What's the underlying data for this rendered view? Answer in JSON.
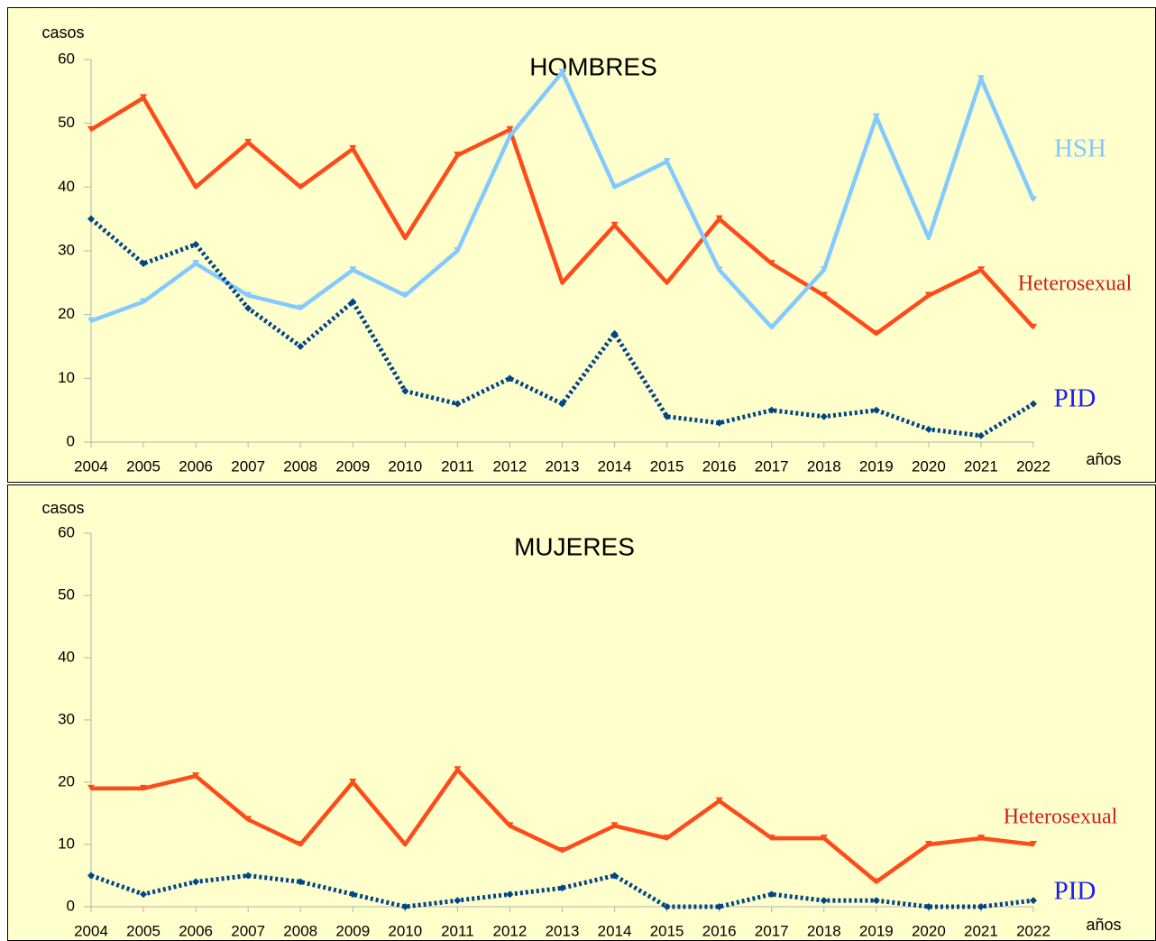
{
  "chart_data": [
    {
      "type": "line",
      "title": "HOMBRES",
      "ylabel": "casos",
      "xlabel": "años",
      "categories": [
        "2004",
        "2005",
        "2006",
        "2007",
        "2008",
        "2009",
        "2010",
        "2011",
        "2012",
        "2013",
        "2014",
        "2015",
        "2016",
        "2017",
        "2018",
        "2019",
        "2020",
        "2021",
        "2022"
      ],
      "ylim": [
        0,
        60
      ],
      "yticks": [
        0,
        10,
        20,
        30,
        40,
        50,
        60
      ],
      "series": [
        {
          "name": "Heterosexual",
          "color": "#ff4a1a",
          "label_color": "#c9211e",
          "dashed": false,
          "values": [
            49,
            54,
            40,
            47,
            40,
            46,
            32,
            45,
            49,
            25,
            34,
            25,
            35,
            28,
            23,
            17,
            23,
            27,
            18
          ]
        },
        {
          "name": "HSH",
          "color": "#83caff",
          "label_color": "#83caff",
          "dashed": false,
          "values": [
            19,
            22,
            28,
            23,
            21,
            27,
            23,
            30,
            48,
            58,
            40,
            44,
            27,
            18,
            27,
            51,
            32,
            57,
            38
          ]
        },
        {
          "name": "PID",
          "color": "#004586",
          "label_color": "#1a1aff",
          "dashed": true,
          "values": [
            35,
            28,
            31,
            21,
            15,
            22,
            8,
            6,
            10,
            6,
            17,
            4,
            3,
            5,
            4,
            5,
            2,
            1,
            6
          ]
        }
      ]
    },
    {
      "type": "line",
      "title": "MUJERES",
      "ylabel": "casos",
      "xlabel": "años",
      "categories": [
        "2004",
        "2005",
        "2006",
        "2007",
        "2008",
        "2009",
        "2010",
        "2011",
        "2012",
        "2013",
        "2014",
        "2015",
        "2016",
        "2017",
        "2018",
        "2019",
        "2020",
        "2021",
        "2022"
      ],
      "ylim": [
        0,
        60
      ],
      "yticks": [
        0,
        10,
        20,
        30,
        40,
        50,
        60
      ],
      "series": [
        {
          "name": "Heterosexual",
          "color": "#ff4a1a",
          "label_color": "#c9211e",
          "dashed": false,
          "values": [
            19,
            19,
            21,
            14,
            10,
            20,
            10,
            22,
            13,
            9,
            13,
            11,
            17,
            11,
            11,
            4,
            10,
            11,
            10
          ]
        },
        {
          "name": "PID",
          "color": "#004586",
          "label_color": "#1a1aff",
          "dashed": true,
          "values": [
            5,
            2,
            4,
            5,
            4,
            2,
            0,
            1,
            2,
            3,
            5,
            0,
            0,
            2,
            1,
            1,
            0,
            0,
            1
          ]
        }
      ]
    }
  ]
}
